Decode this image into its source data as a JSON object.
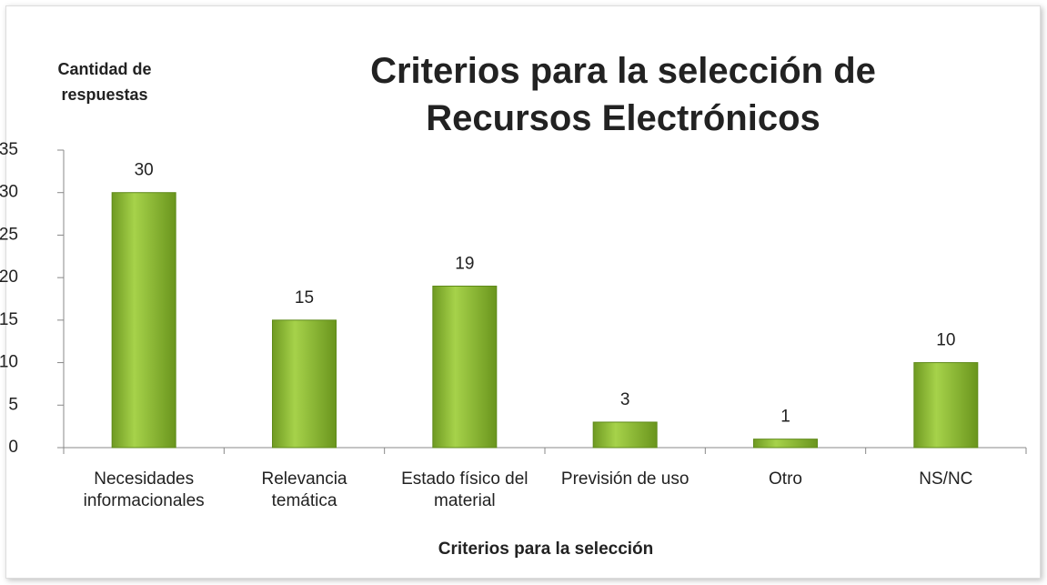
{
  "chart_data": {
    "type": "bar",
    "title": "Criterios para la selección de Recursos Electrónicos",
    "y_label": "Cantidad de respuestas",
    "x_label": "Criterios para la selección",
    "categories": [
      "Necesidades informacionales",
      "Relevancia temática",
      "Estado físico del material",
      "Previsión de uso",
      "Otro",
      "NS/NC"
    ],
    "values": [
      30,
      15,
      19,
      3,
      1,
      10
    ],
    "color": "#8cbb32",
    "ylim": [
      0,
      35
    ],
    "yticks": [
      0,
      5,
      10,
      15,
      20,
      25,
      30,
      35
    ],
    "grid": false
  }
}
